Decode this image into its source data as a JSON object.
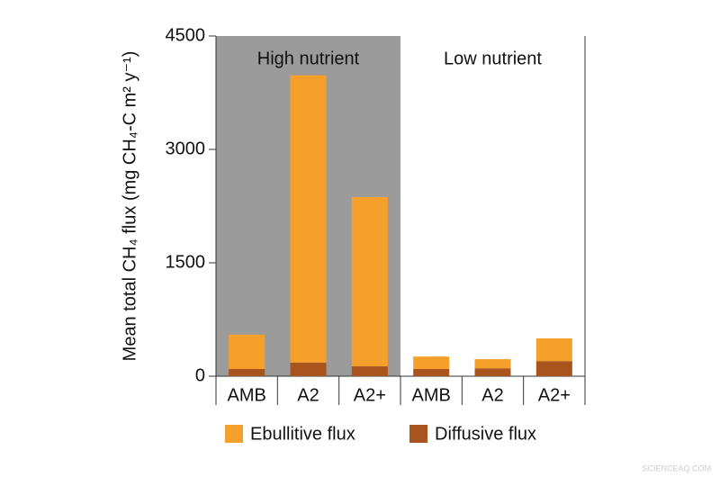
{
  "chart_data": {
    "type": "stacked_bar",
    "ylabel": "Mean total CH₄ flux (mg CH₄-C m² y⁻¹)",
    "groups": [
      "High nutrient",
      "Low nutrient"
    ],
    "categories": [
      "AMB",
      "A2",
      "A2+",
      "AMB",
      "A2",
      "A2+"
    ],
    "series": [
      {
        "name": "Diffusive flux",
        "color": "#a8541c",
        "values": [
          95,
          180,
          130,
          95,
          105,
          200
        ]
      },
      {
        "name": "Ebullitive flux",
        "color": "#f6a02c",
        "values": [
          455,
          3800,
          2240,
          165,
          120,
          300
        ]
      }
    ],
    "legend_order": [
      "Ebullitive flux",
      "Diffusive flux"
    ],
    "ylim": [
      0,
      4500
    ],
    "yticks": [
      0,
      1500,
      3000,
      4500
    ],
    "watermark": "SCIENCEAQ.COM"
  }
}
